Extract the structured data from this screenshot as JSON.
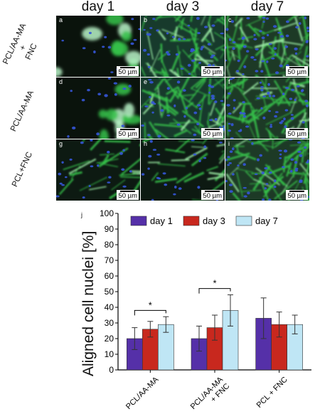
{
  "figure": {
    "columns": [
      "day 1",
      "day 3",
      "day 7"
    ],
    "rows": [
      {
        "label": "PCL/AA-MA\n+\nFNC",
        "panels": [
          {
            "letter": "a",
            "scale": "50 µm",
            "style": "clusters"
          },
          {
            "letter": "b",
            "scale": "50 µm",
            "style": "network"
          },
          {
            "letter": "c",
            "scale": "50 µm",
            "style": "dense"
          }
        ]
      },
      {
        "label": "PCL/AA-MA",
        "panels": [
          {
            "letter": "d",
            "scale": "50 µm",
            "style": "clusters"
          },
          {
            "letter": "e",
            "scale": "50 µm",
            "style": "network"
          },
          {
            "letter": "f",
            "scale": "50 µm",
            "style": "dense"
          }
        ]
      },
      {
        "label": "PCL+FNC",
        "panels": [
          {
            "letter": "g",
            "scale": "50 µm",
            "style": "fibers"
          },
          {
            "letter": "h",
            "scale": "50 µm",
            "style": "fibers"
          },
          {
            "letter": "i",
            "scale": "50 µm",
            "style": "dense"
          }
        ]
      }
    ],
    "panel_j_letter": "j",
    "colors": {
      "green": "#36c24a",
      "blue": "#3557d8",
      "dark": "#0b1a10"
    }
  },
  "chart_data": {
    "type": "bar",
    "ylabel": "Aligned cell nuclei [%]",
    "xlabel": "",
    "ylim": [
      0,
      100
    ],
    "yticks": [
      0,
      10,
      20,
      30,
      40,
      50,
      60,
      70,
      80,
      90,
      100
    ],
    "categories": [
      "PCL/AA-MA",
      "PCL/AA-MA\n+ FNC",
      "PCL + FNC"
    ],
    "series": [
      {
        "name": "day 1",
        "color": "#5530a8",
        "values": [
          20,
          20,
          33
        ],
        "errors": [
          7,
          8,
          13
        ]
      },
      {
        "name": "day 3",
        "color": "#c8281e",
        "values": [
          26,
          27,
          29
        ],
        "errors": [
          5,
          8,
          8
        ]
      },
      {
        "name": "day 7",
        "color": "#bfe6f5",
        "values": [
          29,
          38,
          29
        ],
        "errors": [
          5,
          10,
          6
        ]
      }
    ],
    "significance": [
      {
        "category": 0,
        "label": "*"
      },
      {
        "category": 1,
        "label": "*"
      }
    ],
    "legend_position": "top"
  }
}
